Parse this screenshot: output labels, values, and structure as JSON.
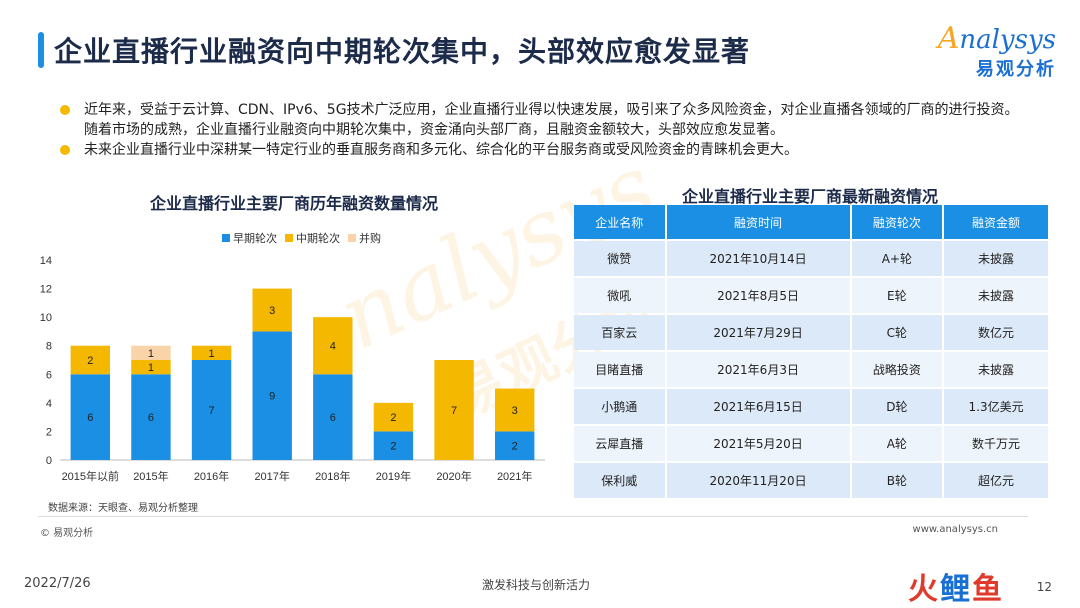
{
  "header": {
    "title": "企业直播行业融资向中期轮次集中，头部效应愈发显著",
    "logo_en": "nalysys",
    "logo_mark": "A",
    "logo_cn": "易观分析"
  },
  "bullets": [
    "近年来，受益于云计算、CDN、IPv6、5G技术广泛应用，企业直播行业得以快速发展，吸引来了众多风险资金，对企业直播各领域的厂商的进行投资。随着市场的成熟，企业直播行业融资向中期轮次集中，资金涌向头部厂商，且融资金额较大，头部效应愈发显著。",
    "未来企业直播行业中深耕某一特定行业的垂直服务商和多元化、综合化的平台服务商或受风险资金的青睐机会更大。"
  ],
  "watermark": {
    "en": "nalysys",
    "cn": "易观分析"
  },
  "chart_data": {
    "type": "bar",
    "stacked": true,
    "title": "企业直播行业主要厂商历年融资数量情况",
    "categories": [
      "2015年以前",
      "2015年",
      "2016年",
      "2017年",
      "2018年",
      "2019年",
      "2020年",
      "2021年"
    ],
    "series": [
      {
        "name": "早期轮次",
        "color": "#1a8fe3",
        "values": [
          6,
          6,
          7,
          9,
          6,
          2,
          0,
          2
        ]
      },
      {
        "name": "中期轮次",
        "color": "#f5b800",
        "values": [
          2,
          1,
          1,
          3,
          4,
          2,
          7,
          3
        ]
      },
      {
        "name": "并购",
        "color": "#f9d4a8",
        "values": [
          0,
          1,
          0,
          0,
          0,
          0,
          0,
          0
        ]
      }
    ],
    "ylim": [
      0,
      14
    ],
    "yticks": [
      "0",
      "2",
      "4",
      "6",
      "8",
      "10",
      "12",
      "14"
    ],
    "legend": "top",
    "grid": false
  },
  "source_note": "数据来源：天眼查、易观分析整理",
  "copyright": "© 易观分析",
  "website": "www.analysys.cn",
  "table": {
    "title": "企业直播行业主要厂商最新融资情况",
    "headers": [
      "企业名称",
      "融资时间",
      "融资轮次",
      "融资金额"
    ],
    "rows": [
      [
        "微赞",
        "2021年10月14日",
        "A+轮",
        "未披露"
      ],
      [
        "微吼",
        "2021年8月5日",
        "E轮",
        "未披露"
      ],
      [
        "百家云",
        "2021年7月29日",
        "C轮",
        "数亿元"
      ],
      [
        "目睹直播",
        "2021年6月3日",
        "战略投资",
        "未披露"
      ],
      [
        "小鹅通",
        "2021年6月15日",
        "D轮",
        "1.3亿美元"
      ],
      [
        "云犀直播",
        "2021年5月20日",
        "A轮",
        "数千万元"
      ],
      [
        "保利威",
        "2020年11月20日",
        "B轮",
        "超亿元"
      ]
    ]
  },
  "footer": {
    "date": "2022/7/26",
    "slogan": "激发科技与创新活力",
    "brand": [
      "火",
      "鲤",
      "鱼"
    ],
    "page": "12"
  }
}
